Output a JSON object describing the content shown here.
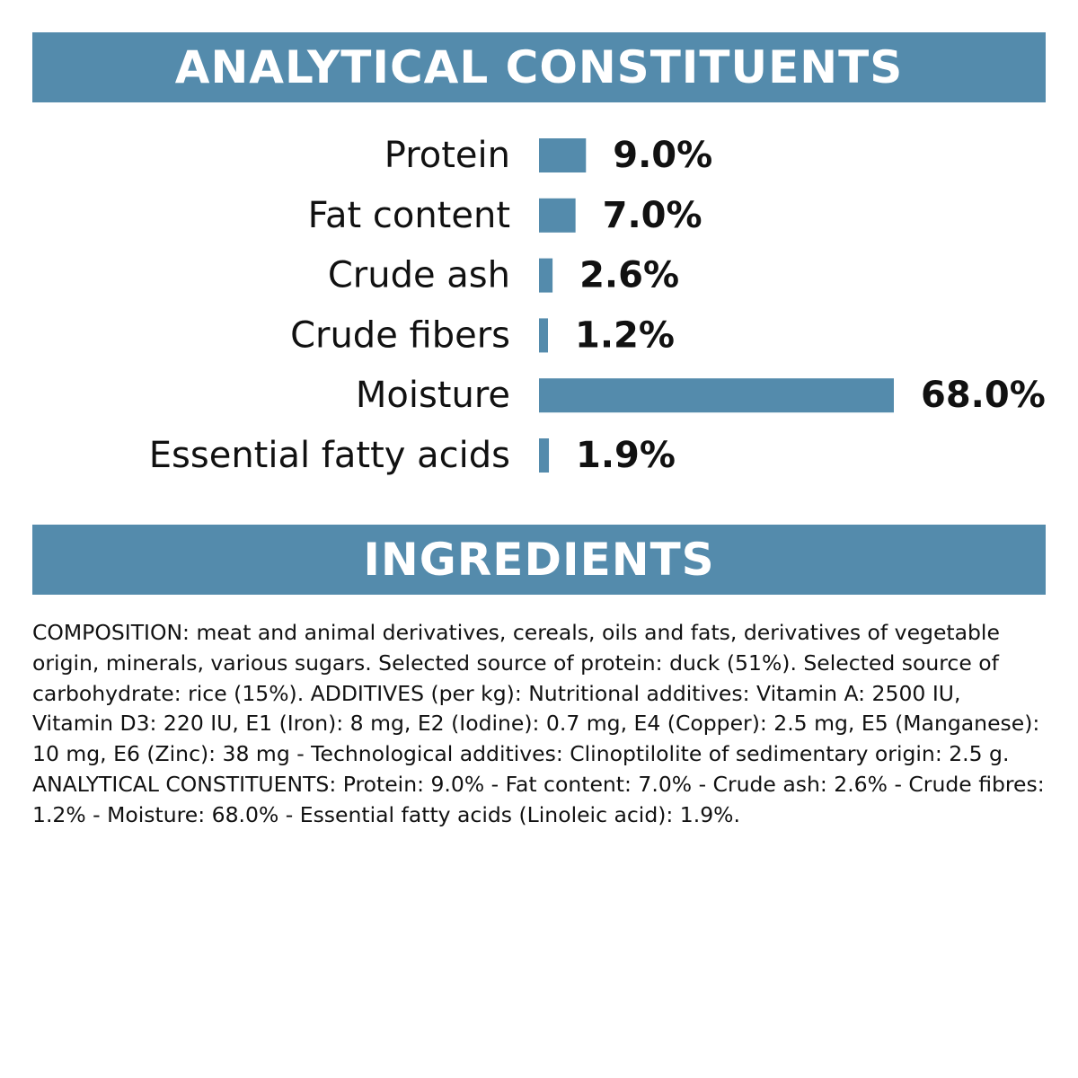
{
  "analytical_section": {
    "title": "ANALYTICAL CONSTITUENTS"
  },
  "ingredients_section": {
    "title": "INGREDIENTS",
    "composition": "COMPOSITION: meat and animal derivatives, cereals, oils and fats, derivatives of vegetable origin, minerals, various sugars. Selected source of protein: duck (51%). Selected source of carbohydrate: rice (15%). ADDITIVES (per kg): Nutritional additives: Vitamin A: 2500 IU, Vitamin D3: 220 IU, E1 (Iron): 8 mg, E2 (Iodine): 0.7 mg, E4 (Copper): 2.5 mg, E5 (Manganese): 10 mg, E6 (Zinc): 38 mg - Technological additives: Clinoptilolite of sedimentary origin: 2.5 g. ANALYTICAL CONSTITUENTS: Protein: 9.0% - Fat content: 7.0% - Crude ash: 2.6% - Crude fibres: 1.2% - Moisture: 68.0% - Essential fatty acids (Linoleic acid): 1.9%."
  },
  "chart_data": {
    "type": "bar",
    "orientation": "horizontal",
    "categories": [
      "Protein",
      "Fat content",
      "Crude ash",
      "Crude fibers",
      "Moisture",
      "Essential fatty acids"
    ],
    "values": [
      9.0,
      7.0,
      2.6,
      1.2,
      68.0,
      1.9
    ],
    "value_labels": [
      "9.0%",
      "7.0%",
      "2.6%",
      "1.2%",
      "68.0%",
      "1.9%"
    ],
    "unit": "%",
    "title": "",
    "xlabel": "",
    "ylabel": "",
    "xlim": [
      0,
      68
    ],
    "grid": false,
    "legend": "none",
    "bar_color": "#548bac"
  }
}
